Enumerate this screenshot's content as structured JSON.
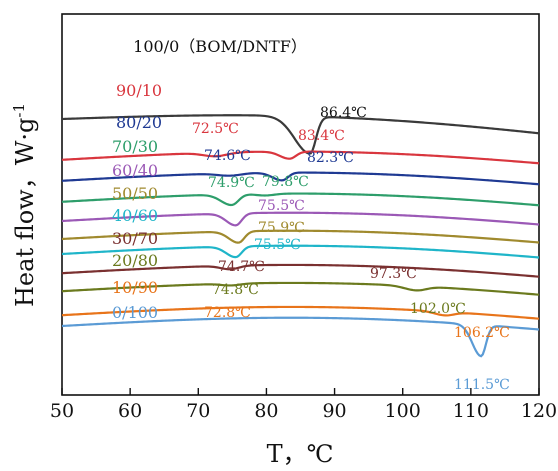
{
  "chart_data": {
    "type": "line",
    "xlabel": "T，℃",
    "ylabel": "Heat flow，W·g",
    "ylabel_sup": "-1",
    "xlim": [
      50,
      120
    ],
    "xticks": [
      "50",
      "60",
      "70",
      "80",
      "90",
      "100",
      "110",
      "120"
    ],
    "grid": false,
    "series": [
      {
        "name": "100/0（BOM/DNTF）",
        "color": "#3a3a3a",
        "offset": 4.55,
        "peaks": [
          {
            "x": 86.4,
            "depth": 0.62,
            "wl": 3.2,
            "wr": 1.2,
            "label": "86.4℃"
          }
        ]
      },
      {
        "name": "90/10",
        "color": "#d9363e",
        "offset": 3.87,
        "peaks": [
          {
            "x": 72.5,
            "depth": 0.06,
            "wl": 2.5,
            "wr": 2.5,
            "label": "72.5℃"
          },
          {
            "x": 83.4,
            "depth": 0.12,
            "wl": 2.0,
            "wr": 1.3,
            "label": "83.4℃"
          }
        ]
      },
      {
        "name": "80/20",
        "color": "#1f3a93",
        "offset": 3.52,
        "peaks": [
          {
            "x": 74.6,
            "depth": 0.04,
            "wl": 2.5,
            "wr": 2.5,
            "label": "74.6℃"
          },
          {
            "x": 82.3,
            "depth": 0.13,
            "wl": 2.0,
            "wr": 1.2,
            "label": "82.3℃"
          }
        ]
      },
      {
        "name": "70/30",
        "color": "#2e9e6b",
        "offset": 3.17,
        "peaks": [
          {
            "x": 74.9,
            "depth": 0.18,
            "wl": 2.2,
            "wr": 1.4,
            "label": "74.9℃"
          },
          {
            "x": 79.8,
            "depth": 0.03,
            "wl": 2.0,
            "wr": 2.0,
            "label": "79.8℃"
          }
        ]
      },
      {
        "name": "60/40",
        "color": "#9b59b6",
        "offset": 2.85,
        "peaks": [
          {
            "x": 75.5,
            "depth": 0.2,
            "wl": 2.0,
            "wr": 1.2,
            "label": "75.5℃"
          }
        ]
      },
      {
        "name": "50/50",
        "color": "#a08a2e",
        "offset": 2.55,
        "peaks": [
          {
            "x": 75.9,
            "depth": 0.19,
            "wl": 2.0,
            "wr": 1.2,
            "label": "75.9℃"
          }
        ]
      },
      {
        "name": "40/60",
        "color": "#1fb5c9",
        "offset": 2.3,
        "peaks": [
          {
            "x": 75.5,
            "depth": 0.18,
            "wl": 2.0,
            "wr": 1.2,
            "label": "75.5℃"
          }
        ]
      },
      {
        "name": "30/70",
        "color": "#7a3030",
        "offset": 1.98,
        "peaks": [
          {
            "x": 74.7,
            "depth": 0.06,
            "wl": 2.0,
            "wr": 1.8,
            "label": "74.7℃"
          },
          {
            "x": 97.3,
            "depth": 0.0,
            "wl": 2.0,
            "wr": 2.0,
            "label": "97.3℃"
          }
        ]
      },
      {
        "name": "20/80",
        "color": "#6b7a1e",
        "offset": 1.68,
        "peaks": [
          {
            "x": 74.8,
            "depth": 0.03,
            "wl": 2.0,
            "wr": 2.0,
            "label": "74.8℃"
          },
          {
            "x": 102.0,
            "depth": 0.07,
            "wl": 2.5,
            "wr": 2.0,
            "label": "102.0℃"
          }
        ]
      },
      {
        "name": "10/90",
        "color": "#e8741a",
        "offset": 1.28,
        "peaks": [
          {
            "x": 72.8,
            "depth": 0.0,
            "wl": 2.0,
            "wr": 2.0,
            "label": "72.8℃"
          },
          {
            "x": 106.2,
            "depth": 0.06,
            "wl": 2.2,
            "wr": 1.8,
            "label": "106.2℃"
          }
        ]
      },
      {
        "name": "0/100",
        "color": "#5b9bd5",
        "offset": 1.1,
        "peaks": [
          {
            "x": 111.5,
            "depth": 0.52,
            "wl": 1.8,
            "wr": 1.0,
            "label": "111.5℃"
          }
        ]
      }
    ]
  }
}
